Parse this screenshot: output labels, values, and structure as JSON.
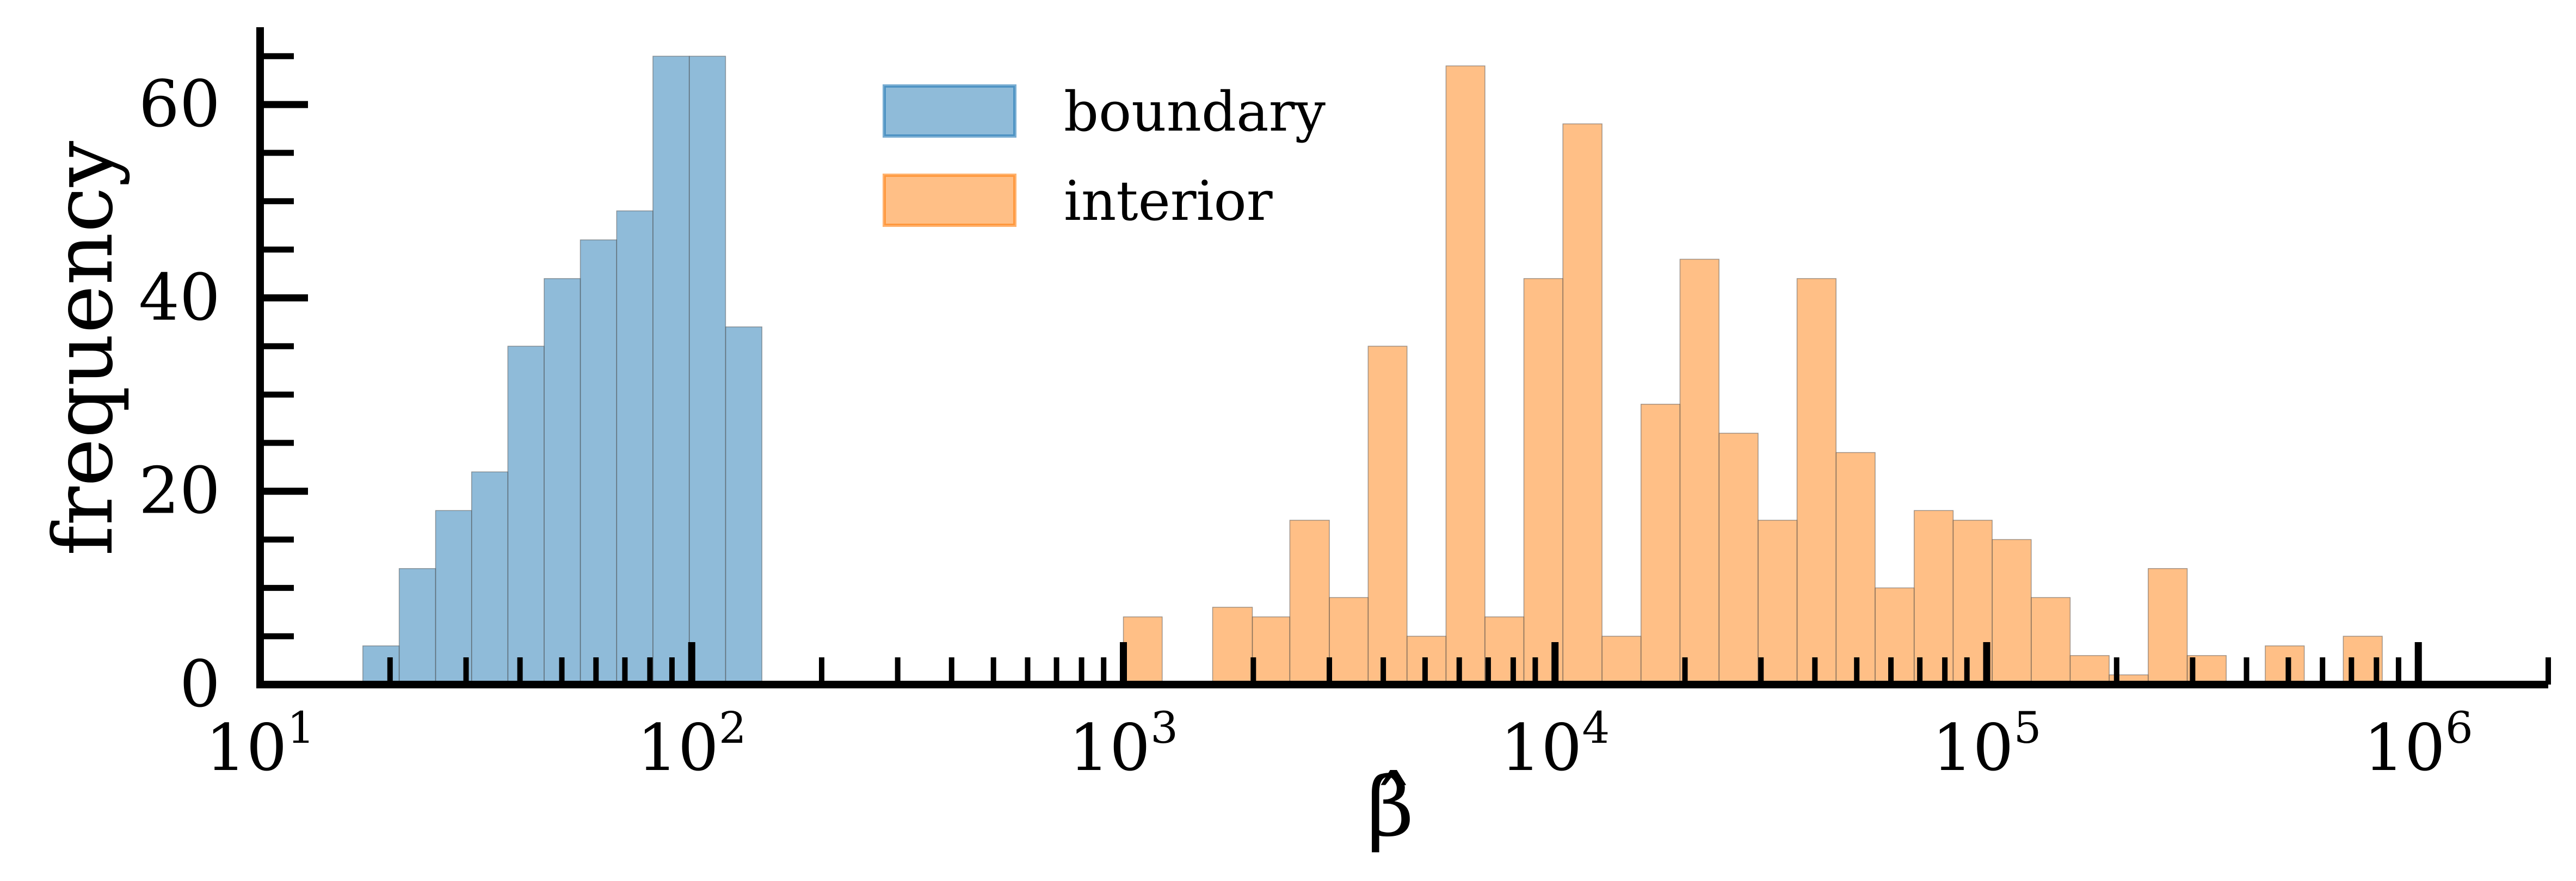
{
  "chart_data": {
    "type": "bar",
    "title": "",
    "xlabel": "β̂",
    "ylabel": "frequency",
    "x_scale": "log",
    "xlim": [
      10,
      2000000
    ],
    "ylim": [
      0,
      68
    ],
    "grid": false,
    "legend_position": "top-center",
    "x_ticks": [
      {
        "value": 10,
        "base": "10",
        "exp": "1"
      },
      {
        "value": 100,
        "base": "10",
        "exp": "2"
      },
      {
        "value": 1000,
        "base": "10",
        "exp": "3"
      },
      {
        "value": 10000,
        "base": "10",
        "exp": "4"
      },
      {
        "value": 100000,
        "base": "10",
        "exp": "5"
      },
      {
        "value": 1000000,
        "base": "10",
        "exp": "6"
      }
    ],
    "y_ticks": [
      {
        "value": 0,
        "label": "0"
      },
      {
        "value": 20,
        "label": "20"
      },
      {
        "value": 40,
        "label": "40"
      },
      {
        "value": 60,
        "label": "60"
      }
    ],
    "series": [
      {
        "name": "boundary",
        "color": "#1f77b4",
        "bins": [
          {
            "x0": 17.3,
            "x1": 21.0,
            "count": 4
          },
          {
            "x0": 21.0,
            "x1": 25.5,
            "count": 12
          },
          {
            "x0": 25.5,
            "x1": 30.9,
            "count": 18
          },
          {
            "x0": 30.9,
            "x1": 37.5,
            "count": 22
          },
          {
            "x0": 37.5,
            "x1": 45.5,
            "count": 35
          },
          {
            "x0": 45.5,
            "x1": 55.2,
            "count": 42
          },
          {
            "x0": 55.2,
            "x1": 67.0,
            "count": 46
          },
          {
            "x0": 67.0,
            "x1": 81.3,
            "count": 49
          },
          {
            "x0": 81.3,
            "x1": 98.7,
            "count": 65
          },
          {
            "x0": 98.7,
            "x1": 119.8,
            "count": 65
          },
          {
            "x0": 119.8,
            "x1": 145.4,
            "count": 37
          }
        ]
      },
      {
        "name": "interior",
        "color": "#ff7f0e",
        "bins": [
          {
            "x0": 1000,
            "x1": 1230,
            "count": 7
          },
          {
            "x0": 1610,
            "x1": 1990,
            "count": 8
          },
          {
            "x0": 1990,
            "x1": 2430,
            "count": 7
          },
          {
            "x0": 2430,
            "x1": 3000,
            "count": 17
          },
          {
            "x0": 3000,
            "x1": 3690,
            "count": 9
          },
          {
            "x0": 3690,
            "x1": 4540,
            "count": 35
          },
          {
            "x0": 4540,
            "x1": 5590,
            "count": 5
          },
          {
            "x0": 5590,
            "x1": 6880,
            "count": 64
          },
          {
            "x0": 6880,
            "x1": 8470,
            "count": 7
          },
          {
            "x0": 8470,
            "x1": 10430,
            "count": 42
          },
          {
            "x0": 10430,
            "x1": 12850,
            "count": 58
          },
          {
            "x0": 12850,
            "x1": 15820,
            "count": 5
          },
          {
            "x0": 15820,
            "x1": 19480,
            "count": 29
          },
          {
            "x0": 19480,
            "x1": 23990,
            "count": 44
          },
          {
            "x0": 23990,
            "x1": 29540,
            "count": 26
          },
          {
            "x0": 29540,
            "x1": 36370,
            "count": 17
          },
          {
            "x0": 36370,
            "x1": 44790,
            "count": 42
          },
          {
            "x0": 44790,
            "x1": 55150,
            "count": 24
          },
          {
            "x0": 55150,
            "x1": 67910,
            "count": 10
          },
          {
            "x0": 67910,
            "x1": 83620,
            "count": 18
          },
          {
            "x0": 83620,
            "x1": 103000,
            "count": 17
          },
          {
            "x0": 103000,
            "x1": 126800,
            "count": 15
          },
          {
            "x0": 126800,
            "x1": 156100,
            "count": 9
          },
          {
            "x0": 156100,
            "x1": 192200,
            "count": 3
          },
          {
            "x0": 192200,
            "x1": 236700,
            "count": 1
          },
          {
            "x0": 236700,
            "x1": 291500,
            "count": 12
          },
          {
            "x0": 291500,
            "x1": 358900,
            "count": 3
          },
          {
            "x0": 441900,
            "x1": 544200,
            "count": 4
          },
          {
            "x0": 670100,
            "x1": 825100,
            "count": 5
          }
        ]
      }
    ]
  }
}
